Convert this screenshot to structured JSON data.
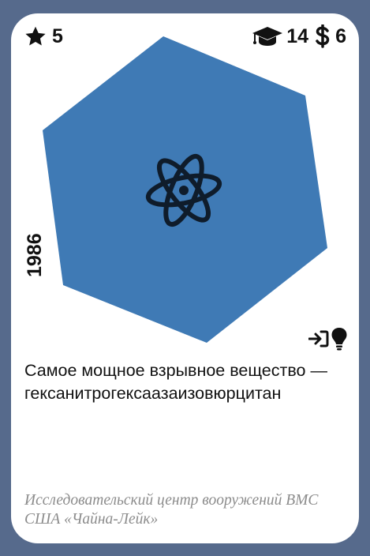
{
  "card": {
    "stars": "5",
    "science": "14",
    "cost": "6",
    "year": "1986",
    "description": "Самое мощное взрывное вещество — гексанитрогексаазаизовюрцитан",
    "source": "Исследовательский центр вооружений ВМС США «Чайна-Лейк»"
  },
  "icons": {
    "stars": "star-icon",
    "science": "graduation-cap-icon",
    "cost": "dollar-sign-icon",
    "main": "atom-icon",
    "enter": "sign-in-icon",
    "idea": "lightbulb-icon"
  },
  "colors": {
    "frame": "#566a8c",
    "hexagon": "#3f7ab5",
    "icon": "#0f1c2b",
    "source_text": "#8c8c8c"
  }
}
